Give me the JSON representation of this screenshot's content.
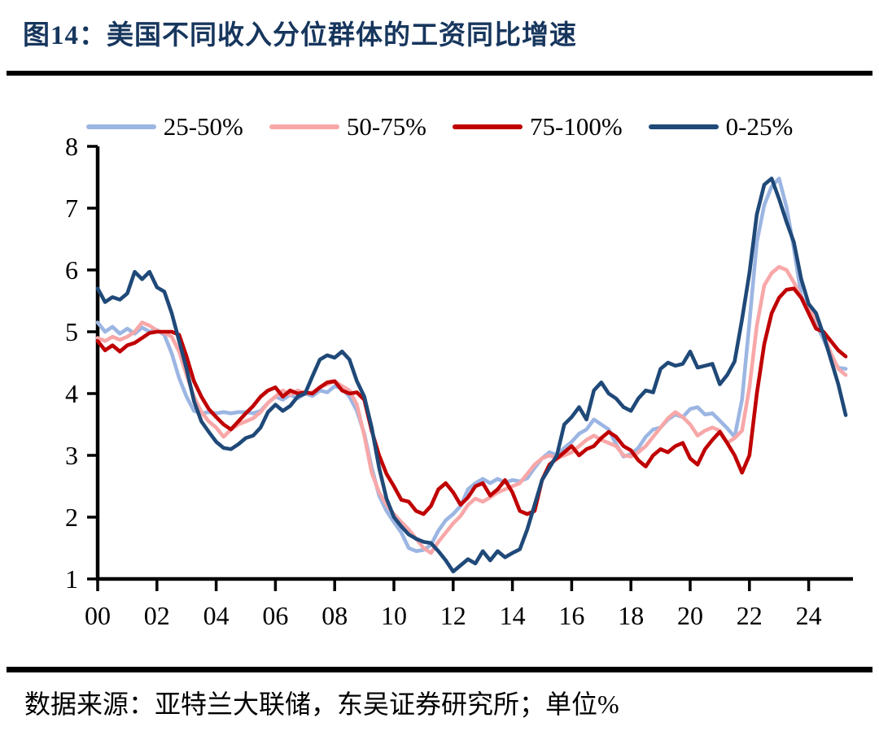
{
  "header": {
    "title": "图14：美国不同收入分位群体的工资同比增速"
  },
  "footer": {
    "source_note": "数据来源：亚特兰大联储，东吴证券研究所；单位%"
  },
  "colors": {
    "title_navy": "#17365D",
    "rule_black": "#000000",
    "series_25_50": "#9CB6E3",
    "series_50_75": "#F8A7A8",
    "series_75_100": "#C00000",
    "series_0_25": "#1F4978"
  },
  "chart_data": {
    "type": "line",
    "title": "美国不同收入分位群体的工资同比增速",
    "unit": "%",
    "x_start": 2000,
    "x_step": 0.25,
    "xlim": [
      2000,
      2025.5
    ],
    "ylim": [
      1,
      8
    ],
    "grid": false,
    "legend_position": "top",
    "y_ticks": [
      1,
      2,
      3,
      4,
      5,
      6,
      7,
      8
    ],
    "x_tick_years": [
      2000,
      2002,
      2004,
      2006,
      2008,
      2010,
      2012,
      2014,
      2016,
      2018,
      2020,
      2022,
      2024
    ],
    "x_tick_labels": [
      "00",
      "02",
      "04",
      "06",
      "08",
      "10",
      "12",
      "14",
      "16",
      "18",
      "20",
      "22",
      "24"
    ],
    "series": [
      {
        "name": "25-50%",
        "color": "#9CB6E3",
        "values": [
          5.15,
          5.0,
          5.08,
          4.97,
          5.05,
          4.97,
          5.07,
          5.0,
          5.03,
          4.95,
          4.65,
          4.25,
          3.95,
          3.72,
          3.68,
          3.7,
          3.68,
          3.7,
          3.68,
          3.7,
          3.7,
          3.68,
          3.72,
          3.85,
          3.95,
          3.9,
          3.98,
          3.92,
          4.0,
          3.96,
          4.05,
          4.02,
          4.12,
          4.08,
          3.95,
          3.72,
          3.35,
          2.8,
          2.35,
          2.1,
          1.92,
          1.75,
          1.5,
          1.45,
          1.47,
          1.55,
          1.78,
          1.95,
          2.05,
          2.18,
          2.45,
          2.55,
          2.62,
          2.55,
          2.62,
          2.56,
          2.6,
          2.58,
          2.63,
          2.8,
          2.95,
          3.05,
          3.0,
          3.12,
          3.22,
          3.35,
          3.42,
          3.58,
          3.5,
          3.42,
          3.18,
          2.98,
          3.02,
          3.12,
          3.3,
          3.42,
          3.45,
          3.58,
          3.66,
          3.62,
          3.75,
          3.78,
          3.66,
          3.68,
          3.56,
          3.44,
          3.3,
          3.9,
          5.15,
          6.45,
          7.05,
          7.35,
          7.48,
          7.02,
          6.35,
          5.58,
          5.35,
          5.12,
          4.88,
          4.6,
          4.42,
          4.4
        ]
      },
      {
        "name": "50-75%",
        "color": "#F8A7A8",
        "values": [
          4.9,
          4.85,
          4.92,
          4.87,
          4.92,
          5.0,
          5.15,
          5.1,
          5.02,
          4.98,
          4.92,
          4.68,
          4.3,
          3.95,
          3.7,
          3.55,
          3.45,
          3.3,
          3.42,
          3.5,
          3.55,
          3.6,
          3.7,
          3.85,
          3.95,
          4.05,
          3.98,
          4.05,
          4.0,
          4.02,
          4.1,
          4.15,
          4.2,
          4.12,
          4.05,
          3.82,
          3.32,
          2.72,
          2.4,
          2.2,
          2.05,
          1.92,
          1.8,
          1.65,
          1.5,
          1.42,
          1.6,
          1.75,
          1.9,
          2.02,
          2.2,
          2.3,
          2.25,
          2.32,
          2.4,
          2.45,
          2.5,
          2.55,
          2.7,
          2.85,
          2.95,
          3.0,
          2.95,
          3.0,
          3.05,
          3.15,
          3.25,
          3.32,
          3.25,
          3.2,
          3.15,
          3.0,
          2.98,
          3.05,
          3.15,
          3.3,
          3.45,
          3.6,
          3.7,
          3.62,
          3.5,
          3.32,
          3.4,
          3.45,
          3.4,
          3.2,
          3.28,
          3.4,
          4.1,
          5.1,
          5.75,
          5.95,
          6.05,
          6.0,
          5.8,
          5.55,
          5.35,
          5.22,
          4.95,
          4.65,
          4.4,
          4.3
        ]
      },
      {
        "name": "75-100%",
        "color": "#C00000",
        "values": [
          4.85,
          4.7,
          4.78,
          4.68,
          4.78,
          4.82,
          4.9,
          4.98,
          5.0,
          5.0,
          5.0,
          4.95,
          4.6,
          4.2,
          3.95,
          3.75,
          3.62,
          3.5,
          3.42,
          3.55,
          3.68,
          3.8,
          3.95,
          4.05,
          4.1,
          3.95,
          4.05,
          4.0,
          4.02,
          4.0,
          4.1,
          4.18,
          4.2,
          4.05,
          4.0,
          4.02,
          3.9,
          3.4,
          3.0,
          2.7,
          2.5,
          2.28,
          2.25,
          2.1,
          2.05,
          2.18,
          2.45,
          2.55,
          2.4,
          2.2,
          2.32,
          2.5,
          2.55,
          2.35,
          2.45,
          2.6,
          2.4,
          2.1,
          2.05,
          2.1,
          2.6,
          2.85,
          2.95,
          3.05,
          3.15,
          3.0,
          3.1,
          3.15,
          3.28,
          3.38,
          3.3,
          3.15,
          3.08,
          2.92,
          2.82,
          3.0,
          3.1,
          3.05,
          3.15,
          3.2,
          2.95,
          2.85,
          3.1,
          3.25,
          3.38,
          3.2,
          3.0,
          2.72,
          3.0,
          4.0,
          4.8,
          5.3,
          5.55,
          5.68,
          5.7,
          5.55,
          5.3,
          5.05,
          5.0,
          4.85,
          4.7,
          4.6
        ]
      },
      {
        "name": "0-25%",
        "color": "#1F4978",
        "values": [
          5.7,
          5.48,
          5.56,
          5.52,
          5.62,
          5.97,
          5.85,
          5.97,
          5.72,
          5.65,
          5.3,
          4.85,
          4.4,
          3.88,
          3.55,
          3.38,
          3.22,
          3.12,
          3.1,
          3.18,
          3.28,
          3.32,
          3.45,
          3.7,
          3.82,
          3.72,
          3.8,
          3.95,
          4.0,
          4.28,
          4.55,
          4.62,
          4.58,
          4.68,
          4.55,
          4.2,
          3.95,
          3.45,
          2.8,
          2.3,
          2.0,
          1.85,
          1.72,
          1.65,
          1.6,
          1.58,
          1.45,
          1.3,
          1.12,
          1.22,
          1.32,
          1.25,
          1.45,
          1.3,
          1.45,
          1.35,
          1.42,
          1.48,
          1.8,
          2.2,
          2.6,
          2.8,
          3.0,
          3.5,
          3.62,
          3.78,
          3.58,
          4.05,
          4.18,
          4.0,
          3.92,
          3.78,
          3.72,
          3.92,
          4.05,
          4.02,
          4.4,
          4.5,
          4.45,
          4.48,
          4.68,
          4.42,
          4.45,
          4.48,
          4.15,
          4.3,
          4.52,
          5.2,
          5.95,
          6.9,
          7.38,
          7.48,
          7.15,
          6.78,
          6.45,
          5.85,
          5.45,
          5.3,
          4.95,
          4.55,
          4.15,
          3.65
        ]
      }
    ]
  }
}
